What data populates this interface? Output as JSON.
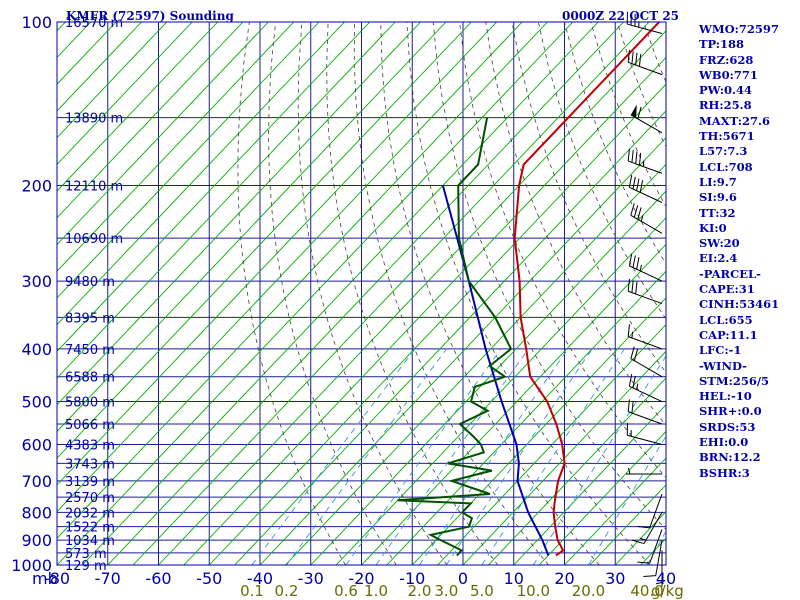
{
  "title": "KMFR (72597) Sounding",
  "datetime": "0000Z 22 OCT 25",
  "chart_data": {
    "type": "skew-t",
    "pressure_unit_label": "mb",
    "mixing_ratio_unit_label": "g/kg",
    "pressure_levels": [
      100,
      200,
      300,
      400,
      500,
      600,
      700,
      800,
      900,
      1000
    ],
    "temperature_ticks": [
      -80,
      -70,
      -60,
      -50,
      -40,
      -30,
      -20,
      -10,
      0,
      10,
      20,
      30,
      40
    ],
    "mixing_ratio_labels": [
      "0.1",
      "0.2",
      "0.6",
      "1.0",
      "2.0",
      "3.0",
      "5.0",
      "10.0",
      "20.0",
      "40.0"
    ],
    "mixing_ratio_values": [
      0.1,
      0.2,
      0.6,
      1.0,
      2.0,
      3.0,
      5.0,
      10.0,
      20.0,
      40.0
    ],
    "height_labels": [
      "16570 m",
      "13890 m",
      "12110 m",
      "10690 m",
      "9480 m",
      "8395 m",
      "7450 m",
      "6588 m",
      "5800 m",
      "5066 m",
      "4383 m",
      "3743 m",
      "3139 m",
      "2570 m",
      "2032 m",
      "1522 m",
      "1034 m",
      "573 m",
      "129 m"
    ],
    "height_pressures": [
      100,
      150,
      200,
      250,
      300,
      350,
      400,
      450,
      500,
      550,
      600,
      650,
      700,
      750,
      800,
      850,
      900,
      950,
      1000
    ],
    "temperature_profile": [
      [
        100,
        -63
      ],
      [
        183,
        -63
      ],
      [
        200,
        -60
      ],
      [
        250,
        -51
      ],
      [
        300,
        -42
      ],
      [
        350,
        -35
      ],
      [
        400,
        -28
      ],
      [
        450,
        -22
      ],
      [
        500,
        -14
      ],
      [
        550,
        -8
      ],
      [
        600,
        -3
      ],
      [
        650,
        1
      ],
      [
        700,
        3
      ],
      [
        760,
        6
      ],
      [
        800,
        8
      ],
      [
        850,
        11
      ],
      [
        900,
        14
      ],
      [
        940,
        17
      ],
      [
        960,
        16.5
      ]
    ],
    "dewpoint_profile": [
      [
        150,
        -79
      ],
      [
        183,
        -72
      ],
      [
        200,
        -72
      ],
      [
        250,
        -62
      ],
      [
        300,
        -52
      ],
      [
        350,
        -40
      ],
      [
        400,
        -31
      ],
      [
        430,
        -32
      ],
      [
        450,
        -27
      ],
      [
        470,
        -31
      ],
      [
        500,
        -29
      ],
      [
        520,
        -24
      ],
      [
        550,
        -27
      ],
      [
        580,
        -22
      ],
      [
        600,
        -19
      ],
      [
        620,
        -17
      ],
      [
        650,
        -22
      ],
      [
        670,
        -12
      ],
      [
        700,
        -18
      ],
      [
        740,
        -8
      ],
      [
        760,
        -25
      ],
      [
        770,
        -10
      ],
      [
        800,
        -10
      ],
      [
        820,
        -7
      ],
      [
        850,
        -6
      ],
      [
        880,
        -12
      ],
      [
        900,
        -9
      ],
      [
        940,
        -3
      ],
      [
        960,
        -3
      ]
    ],
    "parcel_path": [
      [
        200,
        -75
      ],
      [
        300,
        -52
      ],
      [
        400,
        -36
      ],
      [
        500,
        -23
      ],
      [
        600,
        -12
      ],
      [
        650,
        -8
      ],
      [
        700,
        -5
      ],
      [
        800,
        3
      ],
      [
        900,
        11
      ],
      [
        960,
        15
      ]
    ],
    "wind_barbs": [
      {
        "p": 105,
        "dir": 285,
        "spd": 35
      },
      {
        "p": 125,
        "dir": 290,
        "spd": 40
      },
      {
        "p": 160,
        "dir": 300,
        "spd": 60
      },
      {
        "p": 190,
        "dir": 290,
        "spd": 45
      },
      {
        "p": 215,
        "dir": 295,
        "spd": 40
      },
      {
        "p": 245,
        "dir": 300,
        "spd": 35
      },
      {
        "p": 300,
        "dir": 295,
        "spd": 35
      },
      {
        "p": 330,
        "dir": 290,
        "spd": 30
      },
      {
        "p": 400,
        "dir": 290,
        "spd": 15
      },
      {
        "p": 450,
        "dir": 300,
        "spd": 20
      },
      {
        "p": 500,
        "dir": 295,
        "spd": 25
      },
      {
        "p": 550,
        "dir": 290,
        "spd": 20
      },
      {
        "p": 600,
        "dir": 285,
        "spd": 15
      },
      {
        "p": 680,
        "dir": 270,
        "spd": 5
      },
      {
        "p": 740,
        "dir": 200,
        "spd": 10
      },
      {
        "p": 800,
        "dir": 210,
        "spd": 15
      },
      {
        "p": 860,
        "dir": 200,
        "spd": 10
      },
      {
        "p": 900,
        "dir": 190,
        "spd": 10
      },
      {
        "p": 940,
        "dir": 180,
        "spd": 5
      }
    ]
  },
  "indices": [
    "WMO:72597",
    "TP:188",
    "FRZ:628",
    "WB0:771",
    "PW:0.44",
    "RH:25.8",
    "MAXT:27.6",
    "TH:5671",
    "L57:7.3",
    "LCL:708",
    "LI:9.7",
    "SI:9.6",
    "TT:32",
    "KI:0",
    "SW:20",
    "EI:2.4",
    "-PARCEL-",
    "CAPE:31",
    "CINH:53461",
    "LCL:655",
    "CAP:11.1",
    "LFC:-1",
    "-WIND-",
    "STM:256/5",
    "HEL:-10",
    "SHR+:0.0",
    "SRDS:53",
    "EHI:0.0",
    "BRN:12.2",
    "BSHR:3"
  ],
  "colors": {
    "axis": "#0000aa",
    "grid": "#1b1b9e",
    "isotherm": "#00b000",
    "mixing_ratio": "#3b94d9",
    "adiabat": "#404040",
    "temperature": "#c00000",
    "dewpoint": "#005000",
    "parcel": "#0000b0",
    "mr_label": "#6b6b00"
  }
}
